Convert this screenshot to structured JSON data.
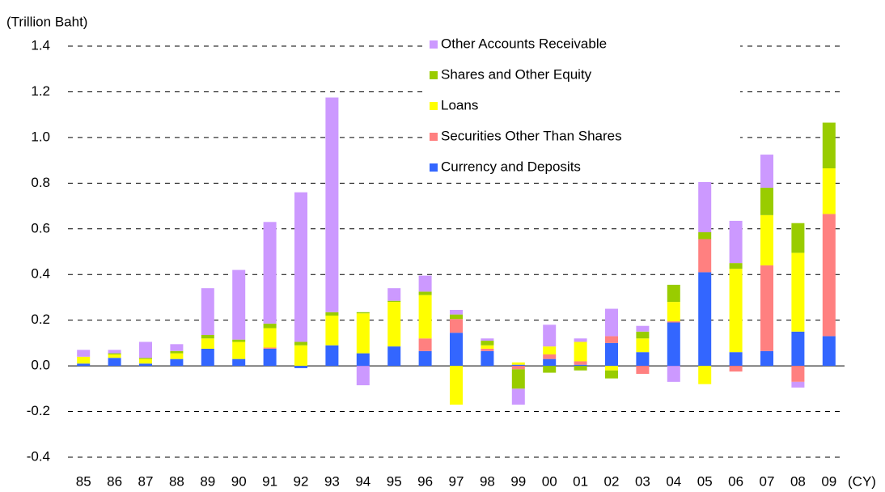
{
  "chart_data": {
    "type": "stacked_bar",
    "y_label": "(Trillion Baht)",
    "x_label": "(CY)",
    "categories": [
      "85",
      "86",
      "87",
      "88",
      "89",
      "90",
      "91",
      "92",
      "93",
      "94",
      "95",
      "96",
      "97",
      "98",
      "99",
      "00",
      "01",
      "02",
      "03",
      "04",
      "05",
      "06",
      "07",
      "08",
      "09"
    ],
    "series": [
      {
        "name": "Currency and Deposits",
        "color": "#3366ff",
        "values": [
          0.01,
          0.035,
          0.01,
          0.03,
          0.075,
          0.03,
          0.075,
          -0.01,
          0.09,
          0.055,
          0.085,
          0.065,
          0.145,
          0.065,
          0.005,
          0.03,
          0.005,
          0.1,
          0.06,
          0.19,
          0.41,
          0.06,
          0.065,
          0.15,
          0.13
        ]
      },
      {
        "name": "Securities Other Than Shares",
        "color": "#ff8080",
        "values": [
          0,
          0,
          0,
          0,
          0,
          0,
          0.005,
          0,
          0,
          0,
          0,
          0.055,
          0.06,
          0.01,
          -0.015,
          0.02,
          0.015,
          0.03,
          -0.035,
          0.005,
          0.145,
          -0.025,
          0.375,
          -0.07,
          0.535
        ]
      },
      {
        "name": "Loans",
        "color": "#ffff00",
        "values": [
          0.03,
          0.015,
          0.02,
          0.025,
          0.045,
          0.075,
          0.085,
          0.09,
          0.13,
          0.175,
          0.195,
          0.19,
          -0.17,
          0.015,
          0.01,
          0.035,
          0.085,
          -0.02,
          0.06,
          0.085,
          -0.08,
          0.365,
          0.22,
          0.345,
          0.2
        ]
      },
      {
        "name": "Shares and Other Equity",
        "color": "#99cc00",
        "values": [
          0,
          0.005,
          0.005,
          0.01,
          0.015,
          0.01,
          0.02,
          0.015,
          0.015,
          0.005,
          0.005,
          0.015,
          0.02,
          0.02,
          -0.085,
          -0.03,
          -0.02,
          -0.035,
          0.03,
          0.075,
          0.03,
          0.025,
          0.12,
          0.13,
          0.2
        ]
      },
      {
        "name": "Other Accounts Receivable",
        "color": "#cc99ff",
        "values": [
          0.03,
          0.015,
          0.07,
          0.03,
          0.205,
          0.305,
          0.445,
          0.655,
          0.94,
          -0.085,
          0.055,
          0.07,
          0.02,
          0.01,
          -0.07,
          0.095,
          0.015,
          0.12,
          0.025,
          -0.07,
          0.225,
          0.185,
          0.145,
          -0.025,
          0
        ]
      }
    ],
    "ylim": [
      -0.4,
      1.4
    ],
    "yticks": [
      {
        "value": -0.4,
        "label": "-0.4"
      },
      -0.2,
      {
        "value": 0,
        "label": "0.0"
      },
      0.2,
      0.4,
      0.6,
      0.8,
      {
        "value": 1,
        "label": "1.0"
      },
      1.2,
      1.4
    ],
    "grid": true,
    "negative_tick_color": "#ff0000"
  }
}
